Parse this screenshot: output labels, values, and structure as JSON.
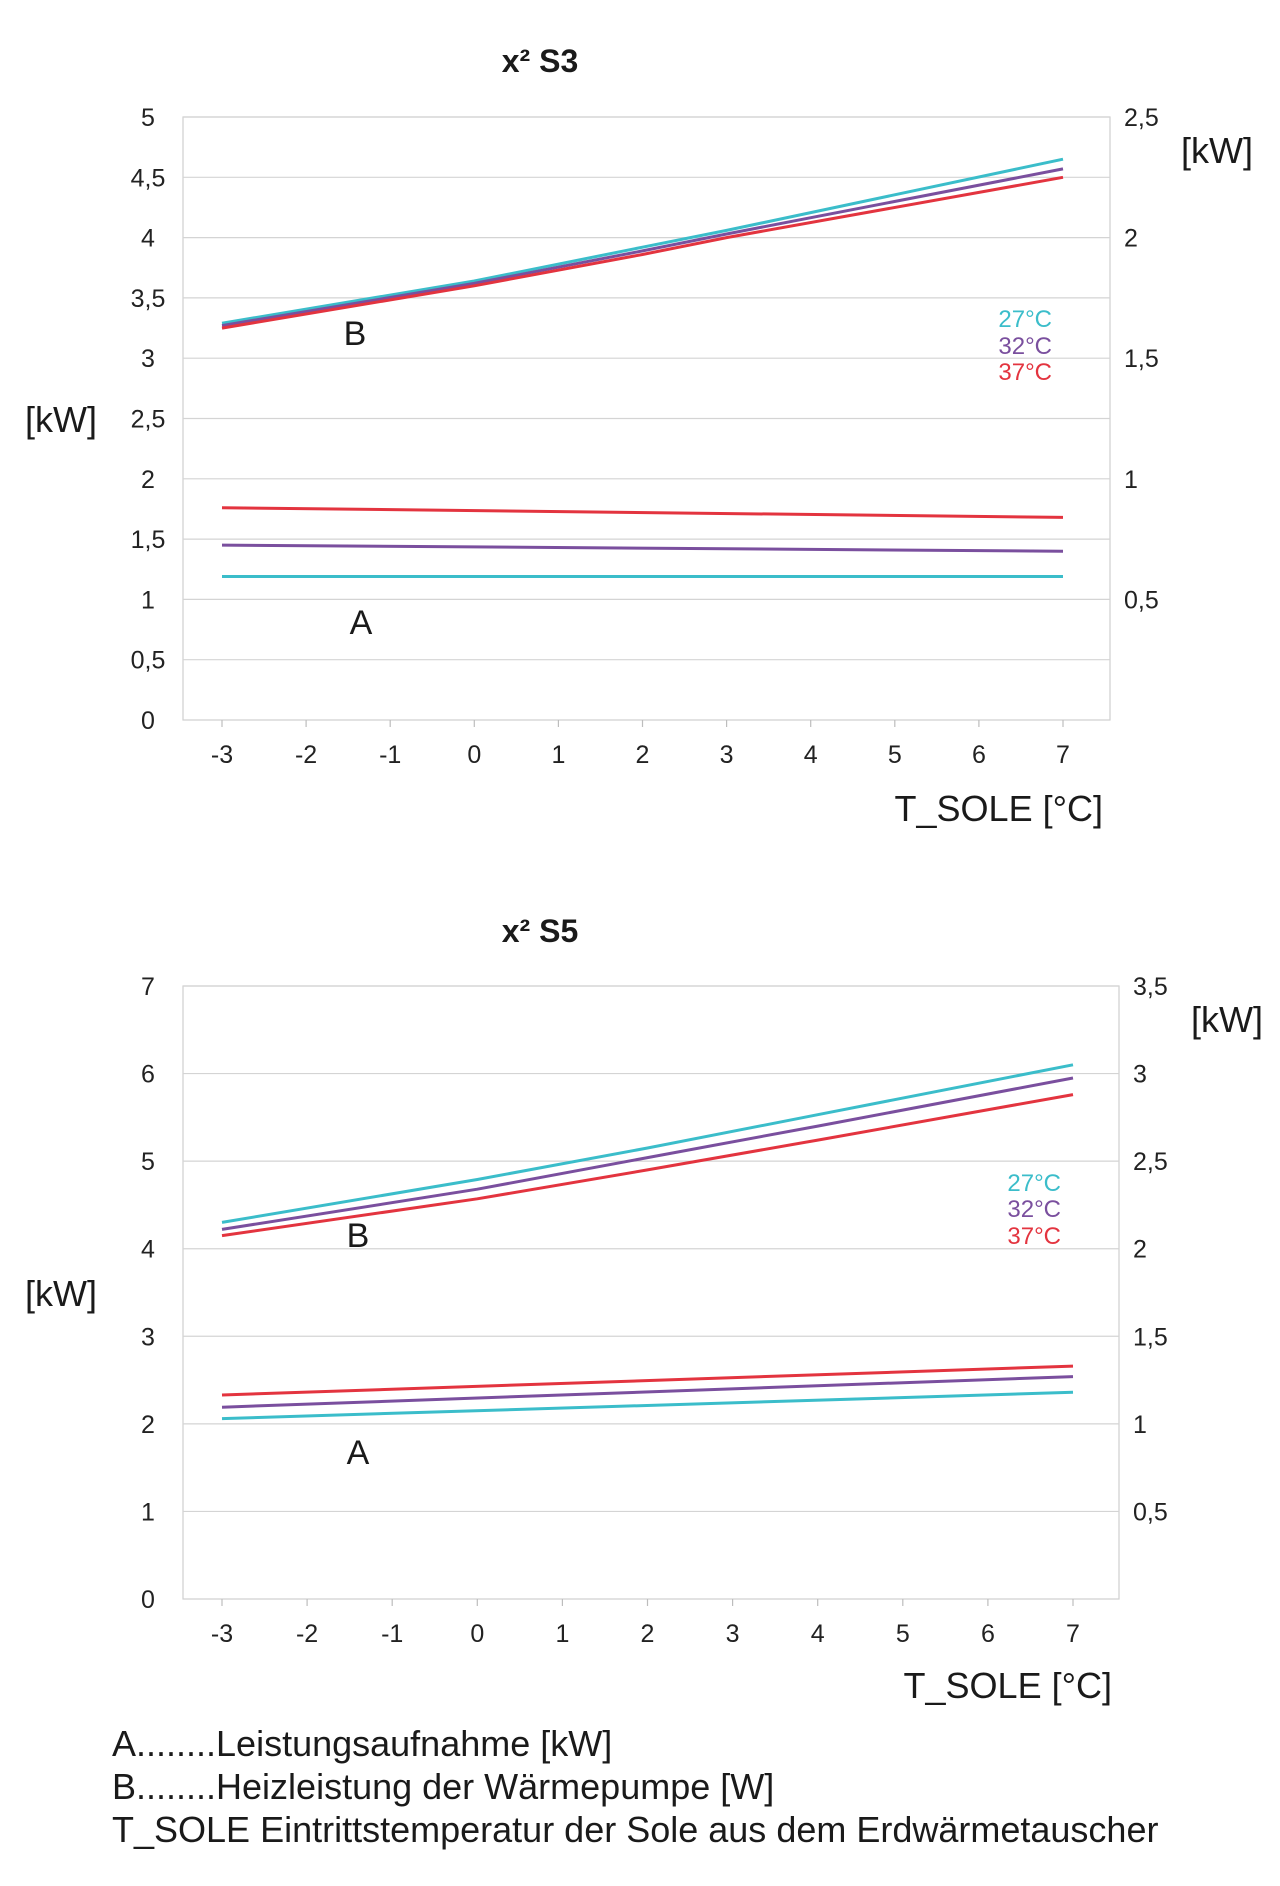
{
  "chart_data": [
    {
      "type": "line",
      "title": "x² S3",
      "xlabel": "T_SOLE [°C]",
      "ylabel": "[kW]",
      "y2label": "[kW]",
      "xlim": [
        -3,
        7
      ],
      "ylim": [
        0,
        5
      ],
      "y2lim": [
        0,
        2.5
      ],
      "x_ticks": [
        "-3",
        "-2",
        "-1",
        "0",
        "1",
        "2",
        "3",
        "4",
        "5",
        "6",
        "7"
      ],
      "y_ticks": [
        "0",
        "0,5",
        "1",
        "1,5",
        "2",
        "2,5",
        "3",
        "3,5",
        "4",
        "4,5",
        "5"
      ],
      "y2_ticks": [
        "0,5",
        "1",
        "1,5",
        "2",
        "2,5"
      ],
      "grid": true,
      "group_labels": {
        "A": "A",
        "B": "B"
      },
      "legend": [
        "27°C",
        "32°C",
        "37°C"
      ],
      "series": [
        {
          "name": "27°C",
          "group": "B",
          "color": "#3bbdca",
          "x": [
            -3,
            0,
            2,
            3,
            7
          ],
          "y": [
            3.29,
            3.64,
            3.92,
            4.06,
            4.65
          ]
        },
        {
          "name": "32°C",
          "group": "B",
          "color": "#7a4f9e",
          "x": [
            -3,
            0,
            2,
            3,
            7
          ],
          "y": [
            3.27,
            3.62,
            3.89,
            4.03,
            4.57
          ]
        },
        {
          "name": "37°C",
          "group": "B",
          "color": "#e3343f",
          "x": [
            -3,
            0,
            2,
            3,
            7
          ],
          "y": [
            3.25,
            3.6,
            3.86,
            4.0,
            4.5
          ]
        },
        {
          "name": "27°C",
          "group": "A",
          "color": "#3bbdca",
          "x": [
            -3,
            7
          ],
          "y": [
            1.19,
            1.19
          ]
        },
        {
          "name": "32°C",
          "group": "A",
          "color": "#7a4f9e",
          "x": [
            -3,
            7
          ],
          "y": [
            1.45,
            1.4
          ]
        },
        {
          "name": "37°C",
          "group": "A",
          "color": "#e3343f",
          "x": [
            -3,
            7
          ],
          "y": [
            1.76,
            1.68
          ]
        }
      ]
    },
    {
      "type": "line",
      "title": "x² S5",
      "xlabel": "T_SOLE [°C]",
      "ylabel": "[kW]",
      "y2label": "[kW]",
      "xlim": [
        -3,
        7
      ],
      "ylim": [
        0,
        7
      ],
      "y2lim": [
        0,
        3.5
      ],
      "x_ticks": [
        "-3",
        "-2",
        "-1",
        "0",
        "1",
        "2",
        "3",
        "4",
        "5",
        "6",
        "7"
      ],
      "y_ticks": [
        "0",
        "1",
        "2",
        "3",
        "4",
        "5",
        "6",
        "7"
      ],
      "y2_ticks": [
        "0,5",
        "1",
        "1,5",
        "2",
        "2,5",
        "3",
        "3,5"
      ],
      "grid": true,
      "group_labels": {
        "A": "A",
        "B": "B"
      },
      "legend": [
        "27°C",
        "32°C",
        "37°C"
      ],
      "series": [
        {
          "name": "27°C",
          "group": "B",
          "color": "#3bbdca",
          "x": [
            -3,
            0,
            2,
            4,
            7
          ],
          "y": [
            4.3,
            4.79,
            5.15,
            5.53,
            6.1
          ]
        },
        {
          "name": "32°C",
          "group": "B",
          "color": "#7a4f9e",
          "x": [
            -3,
            0,
            2,
            4,
            7
          ],
          "y": [
            4.22,
            4.68,
            5.04,
            5.4,
            5.95
          ]
        },
        {
          "name": "37°C",
          "group": "B",
          "color": "#e3343f",
          "x": [
            -3,
            0,
            2,
            4,
            7
          ],
          "y": [
            4.15,
            4.57,
            4.9,
            5.24,
            5.76
          ]
        },
        {
          "name": "27°C",
          "group": "A",
          "color": "#3bbdca",
          "x": [
            -3,
            7
          ],
          "y": [
            2.06,
            2.36
          ]
        },
        {
          "name": "32°C",
          "group": "A",
          "color": "#7a4f9e",
          "x": [
            -3,
            7
          ],
          "y": [
            2.19,
            2.54
          ]
        },
        {
          "name": "37°C",
          "group": "A",
          "color": "#e3343f",
          "x": [
            -3,
            7
          ],
          "y": [
            2.33,
            2.66
          ]
        }
      ]
    }
  ],
  "footnote": [
    {
      "key": "A",
      "dots": "........",
      "text": "Leistungsaufnahme [kW]"
    },
    {
      "key": "B",
      "dots": "........",
      "text": "Heizleistung der Wärmepumpe [W]"
    },
    {
      "key": "T_SOLE",
      "dots": "",
      "text": "Eintrittstemperatur der Sole aus dem Erdwärmetauscher"
    }
  ]
}
